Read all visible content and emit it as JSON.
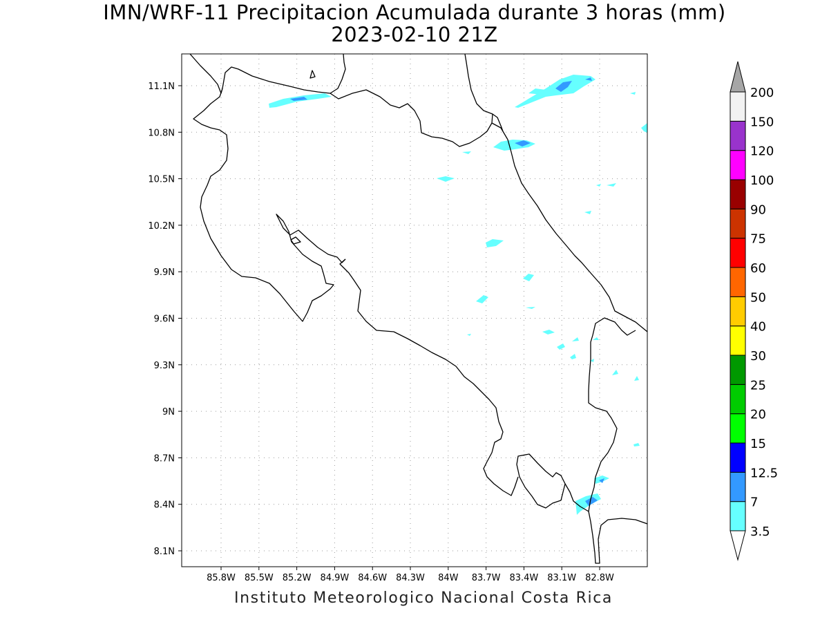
{
  "title": {
    "line1": "IMN/WRF-11 Precipitacion Acumulada durante 3 horas (mm)",
    "line2": "2023-02-10 21Z"
  },
  "footer": "Instituto Meteorologico Nacional Costa Rica",
  "axes": {
    "lon_ticks": [
      "85.8W",
      "85.5W",
      "85.2W",
      "84.9W",
      "84.6W",
      "84.3W",
      "84W",
      "83.7W",
      "83.4W",
      "83.1W",
      "82.8W"
    ],
    "lat_ticks": [
      "11.1N",
      "10.8N",
      "10.5N",
      "10.2N",
      "9.9N",
      "9.6N",
      "9.3N",
      "9N",
      "8.7N",
      "8.4N",
      "8.1N"
    ]
  },
  "colorbar": {
    "levels": [
      "3.5",
      "7",
      "12.5",
      "15",
      "20",
      "25",
      "30",
      "40",
      "50",
      "60",
      "75",
      "90",
      "100",
      "120",
      "150",
      "200"
    ],
    "colors": [
      "#66ffff",
      "#3399ff",
      "#0000ff",
      "#00ff00",
      "#00cc00",
      "#009900",
      "#ffff00",
      "#ffcc00",
      "#ff6600",
      "#ff0000",
      "#cc3300",
      "#990000",
      "#ff00ff",
      "#9933cc",
      "#f2f2f2"
    ],
    "top_arrow_color": "#a6a6a6",
    "bottom_arrow_color": "#ffffff"
  },
  "precip_colors": {
    "light": "#66ffff",
    "medium": "#3399ff"
  }
}
